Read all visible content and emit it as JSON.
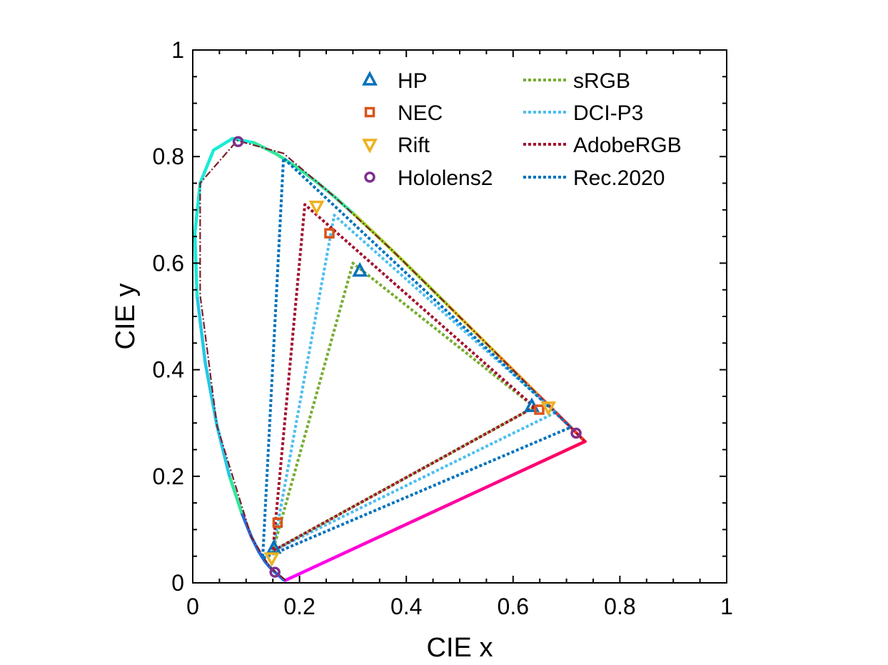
{
  "chart_data": {
    "type": "scatter",
    "title": "",
    "xlabel": "CIE x",
    "ylabel": "CIE y",
    "xlim": [
      0,
      1
    ],
    "ylim": [
      0,
      1
    ],
    "x_ticks": [
      {
        "value": 0,
        "label": "0"
      },
      {
        "value": 0.2,
        "label": "0.2"
      },
      {
        "value": 0.4,
        "label": "0.4"
      },
      {
        "value": 0.6,
        "label": "0.6"
      },
      {
        "value": 0.8,
        "label": "0.8"
      },
      {
        "value": 1,
        "label": "1"
      }
    ],
    "y_ticks": [
      {
        "value": 0,
        "label": "0"
      },
      {
        "value": 0.2,
        "label": "0.2"
      },
      {
        "value": 0.4,
        "label": "0.4"
      },
      {
        "value": 0.6,
        "label": "0.6"
      },
      {
        "value": 0.8,
        "label": "0.8"
      },
      {
        "value": 1,
        "label": "1"
      }
    ],
    "grid": false,
    "legend_position": "top-right",
    "spectral_locus": [
      [
        0.1741,
        0.005
      ],
      [
        0.1738,
        0.0049
      ],
      [
        0.1736,
        0.0049
      ],
      [
        0.1733,
        0.0048
      ],
      [
        0.173,
        0.0048
      ],
      [
        0.1726,
        0.0048
      ],
      [
        0.1721,
        0.0048
      ],
      [
        0.1714,
        0.0051
      ],
      [
        0.1703,
        0.0058
      ],
      [
        0.1689,
        0.0069
      ],
      [
        0.1669,
        0.0086
      ],
      [
        0.1644,
        0.0109
      ],
      [
        0.1611,
        0.0138
      ],
      [
        0.1566,
        0.0177
      ],
      [
        0.151,
        0.0227
      ],
      [
        0.144,
        0.0297
      ],
      [
        0.1355,
        0.0399
      ],
      [
        0.1241,
        0.0578
      ],
      [
        0.1096,
        0.0868
      ],
      [
        0.0913,
        0.1327
      ],
      [
        0.0687,
        0.2007
      ],
      [
        0.0454,
        0.295
      ],
      [
        0.0235,
        0.4127
      ],
      [
        0.0082,
        0.5384
      ],
      [
        0.0039,
        0.6548
      ],
      [
        0.0139,
        0.7502
      ],
      [
        0.0389,
        0.812
      ],
      [
        0.0743,
        0.8338
      ],
      [
        0.1142,
        0.8262
      ],
      [
        0.1547,
        0.8059
      ],
      [
        0.1929,
        0.7816
      ],
      [
        0.2296,
        0.7543
      ],
      [
        0.2658,
        0.7243
      ],
      [
        0.3016,
        0.6923
      ],
      [
        0.3373,
        0.6589
      ],
      [
        0.3731,
        0.6245
      ],
      [
        0.4087,
        0.5896
      ],
      [
        0.4441,
        0.5547
      ],
      [
        0.4788,
        0.5202
      ],
      [
        0.5125,
        0.4866
      ],
      [
        0.5448,
        0.4544
      ],
      [
        0.5752,
        0.4242
      ],
      [
        0.6029,
        0.3965
      ],
      [
        0.627,
        0.3725
      ],
      [
        0.6482,
        0.3514
      ],
      [
        0.6658,
        0.334
      ],
      [
        0.6801,
        0.3197
      ],
      [
        0.6915,
        0.3083
      ],
      [
        0.7006,
        0.2993
      ],
      [
        0.7079,
        0.292
      ],
      [
        0.714,
        0.2859
      ],
      [
        0.719,
        0.2809
      ],
      [
        0.723,
        0.277
      ],
      [
        0.726,
        0.274
      ],
      [
        0.7283,
        0.2717
      ],
      [
        0.73,
        0.27
      ],
      [
        0.7311,
        0.2689
      ],
      [
        0.732,
        0.268
      ],
      [
        0.7327,
        0.2673
      ],
      [
        0.7334,
        0.2666
      ],
      [
        0.734,
        0.266
      ],
      [
        0.7344,
        0.2656
      ],
      [
        0.7346,
        0.2654
      ],
      [
        0.7347,
        0.2653
      ]
    ],
    "coarse_locus": [
      [
        0.1741,
        0.005
      ],
      [
        0.144,
        0.0297
      ],
      [
        0.1096,
        0.0868
      ],
      [
        0.0454,
        0.295
      ],
      [
        0.0139,
        0.54
      ],
      [
        0.0139,
        0.7502
      ],
      [
        0.0833,
        0.83
      ],
      [
        0.17,
        0.806
      ],
      [
        0.2658,
        0.7243
      ],
      [
        0.3731,
        0.6245
      ],
      [
        0.5125,
        0.4866
      ],
      [
        0.627,
        0.3725
      ],
      [
        0.7347,
        0.2653
      ]
    ],
    "markers": [
      {
        "name": "HP",
        "marker": "triangle-up",
        "color": "#0072bd",
        "points": [
          [
            0.313,
            0.585
          ],
          [
            0.635,
            0.331
          ],
          [
            0.152,
            0.065
          ]
        ]
      },
      {
        "name": "NEC",
        "marker": "square",
        "color": "#d95319",
        "points": [
          [
            0.256,
            0.656
          ],
          [
            0.649,
            0.325
          ],
          [
            0.159,
            0.113
          ]
        ]
      },
      {
        "name": "Rift",
        "marker": "triangle-down",
        "color": "#edb120",
        "points": [
          [
            0.232,
            0.707
          ],
          [
            0.666,
            0.33
          ],
          [
            0.148,
            0.047
          ]
        ]
      },
      {
        "name": "Hololens2",
        "marker": "circle",
        "color": "#7e2f8e",
        "points": [
          [
            0.085,
            0.828
          ],
          [
            0.718,
            0.281
          ],
          [
            0.154,
            0.02
          ]
        ]
      }
    ],
    "gamuts": [
      {
        "name": "sRGB",
        "color": "#77ac30",
        "points": [
          [
            0.64,
            0.33
          ],
          [
            0.3,
            0.6
          ],
          [
            0.15,
            0.06
          ]
        ]
      },
      {
        "name": "DCI-P3",
        "color": "#4dbeee",
        "points": [
          [
            0.68,
            0.32
          ],
          [
            0.265,
            0.69
          ],
          [
            0.15,
            0.06
          ]
        ]
      },
      {
        "name": "AdobeRGB",
        "color": "#a2142f",
        "points": [
          [
            0.64,
            0.33
          ],
          [
            0.21,
            0.71
          ],
          [
            0.15,
            0.06
          ]
        ]
      },
      {
        "name": "Rec.2020",
        "color": "#0072bd",
        "points": [
          [
            0.708,
            0.292
          ],
          [
            0.17,
            0.797
          ],
          [
            0.131,
            0.046
          ]
        ]
      }
    ]
  }
}
